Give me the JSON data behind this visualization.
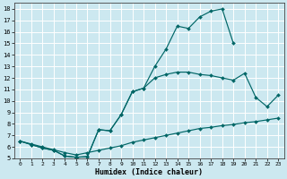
{
  "bg_color": "#cce8f0",
  "grid_color": "#ffffff",
  "line_color": "#006666",
  "xlabel": "Humidex (Indice chaleur)",
  "xlim": [
    -0.5,
    23.5
  ],
  "ylim": [
    5,
    18.5
  ],
  "xticks": [
    0,
    1,
    2,
    3,
    4,
    5,
    6,
    7,
    8,
    9,
    10,
    11,
    12,
    13,
    14,
    15,
    16,
    17,
    18,
    19,
    20,
    21,
    22,
    23
  ],
  "yticks": [
    5,
    6,
    7,
    8,
    9,
    10,
    11,
    12,
    13,
    14,
    15,
    16,
    17,
    18
  ],
  "curve1_x": [
    0,
    1,
    2,
    3,
    4,
    5,
    6,
    7,
    8,
    9,
    10,
    11,
    12,
    13,
    14,
    15,
    16,
    17,
    18,
    19
  ],
  "curve1_y": [
    6.5,
    6.2,
    5.9,
    5.7,
    5.2,
    5.1,
    5.15,
    7.5,
    7.4,
    8.8,
    10.8,
    11.1,
    13.0,
    14.5,
    16.5,
    16.3,
    17.3,
    17.8,
    18.0,
    15.0
  ],
  "curve2_x": [
    0,
    1,
    2,
    3,
    4,
    5,
    6,
    7,
    8,
    9,
    10,
    11,
    12,
    13,
    14,
    15,
    16,
    17,
    18,
    19,
    20,
    21,
    22,
    23
  ],
  "curve2_y": [
    6.5,
    6.2,
    5.9,
    5.7,
    5.2,
    5.1,
    5.15,
    7.5,
    7.4,
    8.8,
    10.8,
    11.1,
    12.0,
    12.3,
    12.5,
    12.5,
    12.3,
    12.2,
    12.0,
    11.8,
    12.4,
    10.3,
    9.5,
    10.5
  ],
  "curve3_x": [
    0,
    1,
    2,
    3,
    4,
    5,
    6,
    7,
    8,
    9,
    10,
    11,
    12,
    13,
    14,
    15,
    16,
    17,
    18,
    19,
    20,
    21,
    22,
    23
  ],
  "curve3_y": [
    6.5,
    6.25,
    6.0,
    5.75,
    5.5,
    5.3,
    5.5,
    5.7,
    5.9,
    6.1,
    6.4,
    6.6,
    6.8,
    7.0,
    7.2,
    7.4,
    7.6,
    7.7,
    7.85,
    7.95,
    8.1,
    8.2,
    8.35,
    8.5
  ]
}
